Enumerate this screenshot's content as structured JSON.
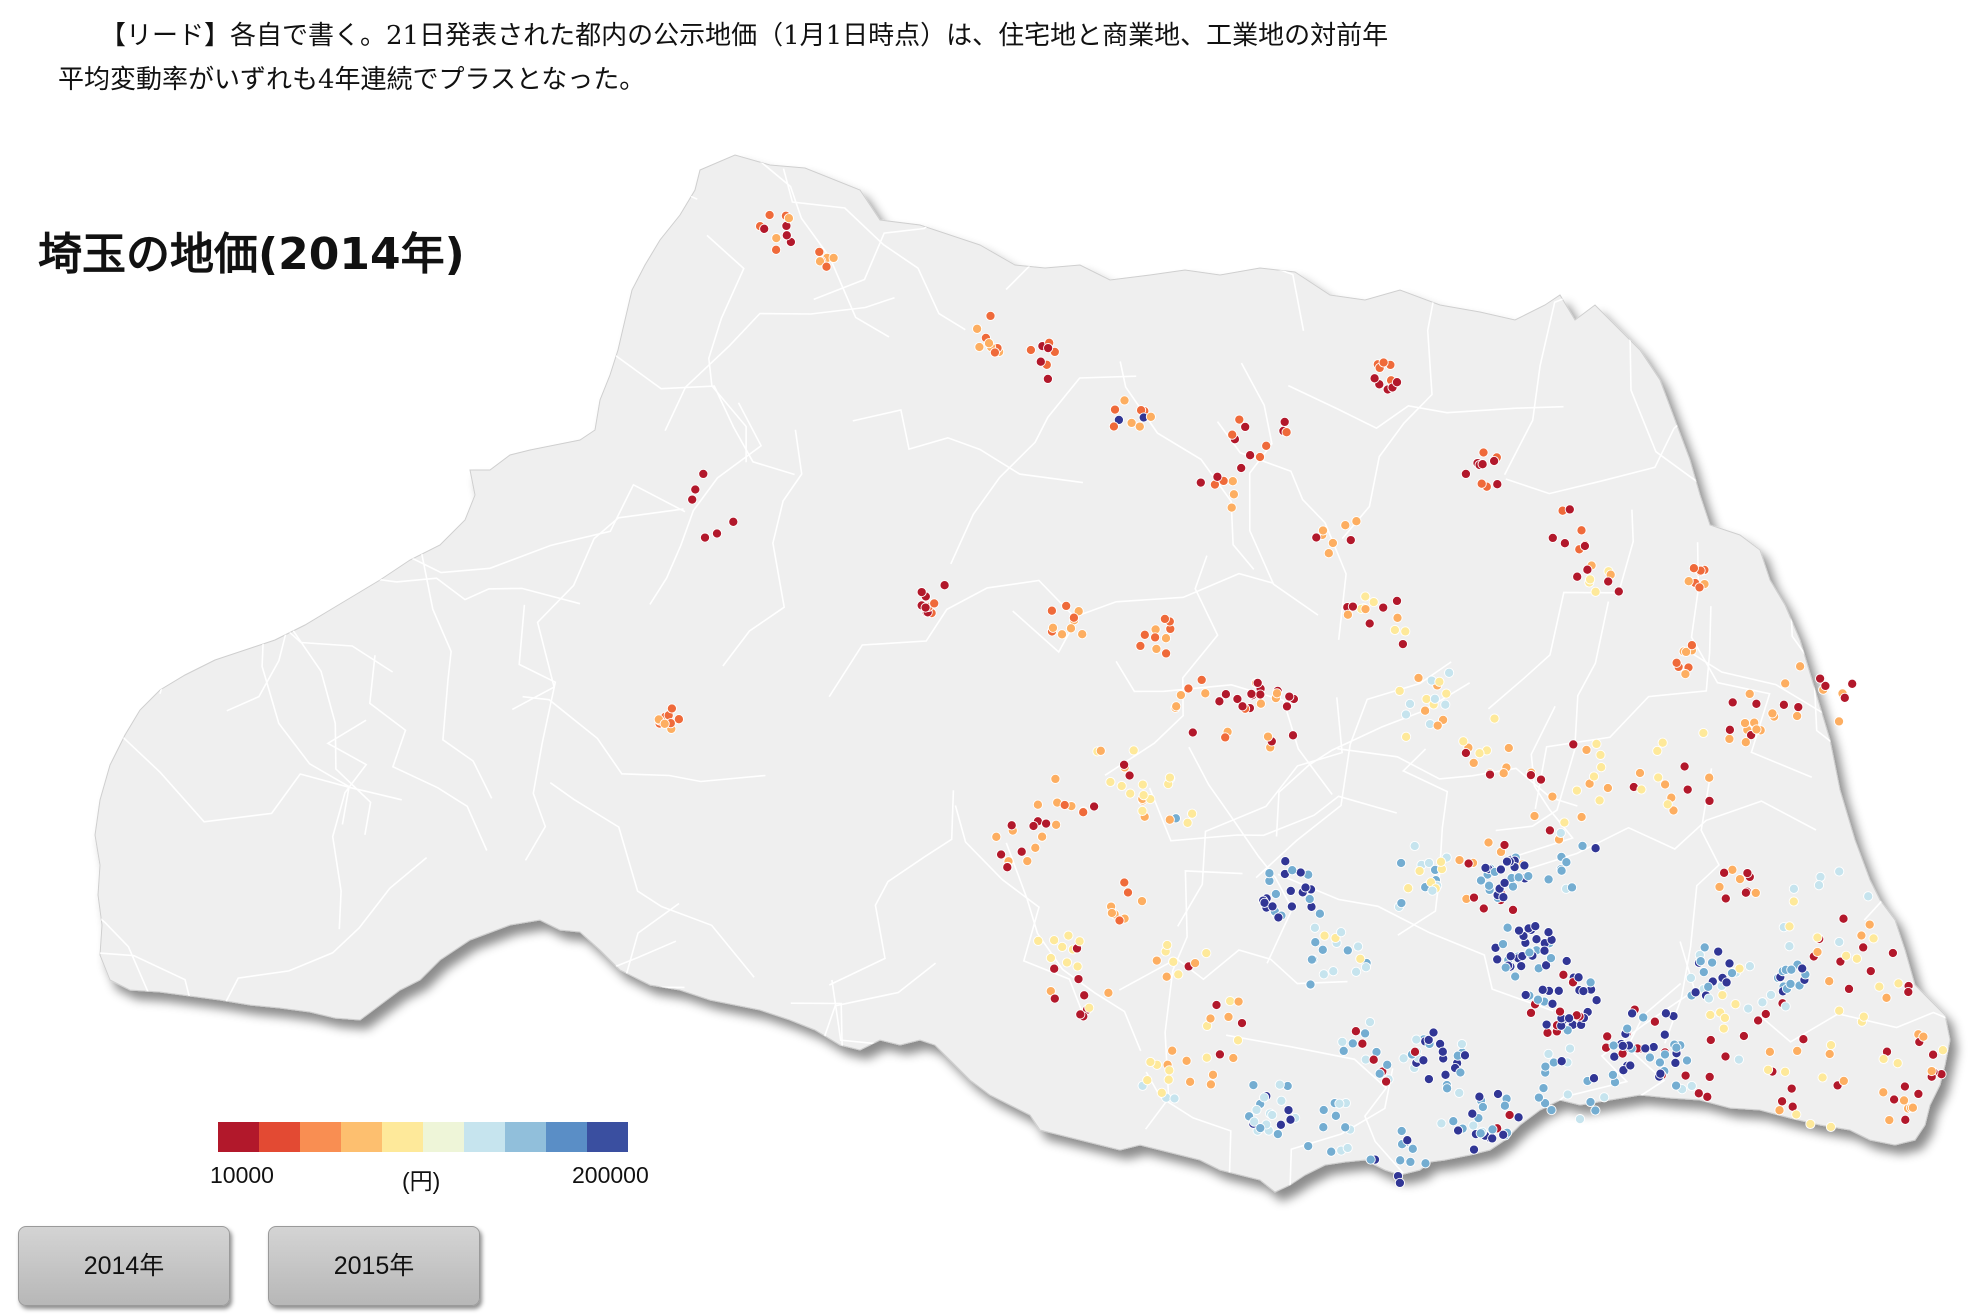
{
  "lead": {
    "line1": "【リード】各自で書く。21日発表された都内の公示地価（1月1日時点）は、住宅地と商業地、工業地の対前年",
    "line2": "平均変動率がいずれも4年連続でプラスとなった。"
  },
  "map": {
    "title": "埼玉の地価(2014年)",
    "region_fill": "#efefef",
    "border_color": "#ffffff"
  },
  "legend": {
    "min_label": "10000",
    "unit_label": "(円)",
    "max_label": "200000",
    "colors": [
      "#b2182b",
      "#e34a33",
      "#f98e52",
      "#fdbf6f",
      "#fee99a",
      "#eef5d8",
      "#c6e4ee",
      "#91bfdb",
      "#5a8ec6",
      "#3a4fa0"
    ]
  },
  "buttons": {
    "year_2014": "2014年",
    "year_2015": "2015年"
  },
  "marker_colors": {
    "red": "#b2182b",
    "orange": "#ef6a3a",
    "lightorange": "#fdae61",
    "yellow": "#fee99a",
    "lightblue": "#c6e4ee",
    "blue": "#74add1",
    "darkblue": "#313695"
  }
}
